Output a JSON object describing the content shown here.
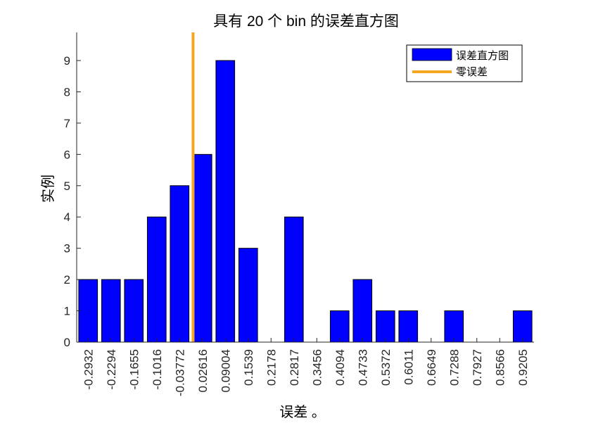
{
  "chart_data": {
    "type": "bar",
    "title": "具有 20 个 bin 的误差直方图",
    "xlabel": "误差 。",
    "ylabel": "实例",
    "categories": [
      "-0.2932",
      "-0.2294",
      "-0.1655",
      "-0.1016",
      "-0.03772",
      "0.02616",
      "0.09004",
      "0.1539",
      "0.2178",
      "0.2817",
      "0.3456",
      "0.4094",
      "0.4733",
      "0.5372",
      "0.6011",
      "0.6649",
      "0.7288",
      "0.7927",
      "0.8566",
      "0.9205"
    ],
    "series": [
      {
        "name": "误差直方图",
        "color": "#0000ff",
        "values": [
          2,
          2,
          2,
          4,
          5,
          6,
          9,
          3,
          0,
          4,
          0,
          1,
          2,
          1,
          1,
          0,
          1,
          0,
          0,
          1
        ]
      }
    ],
    "zero_error_line": {
      "name": "零误差",
      "color": "#f5a623",
      "x": 0
    },
    "ylim": [
      0,
      9.9
    ],
    "yticks": [
      0,
      1,
      2,
      3,
      4,
      5,
      6,
      7,
      8,
      9
    ],
    "grid": false,
    "legend_position": "top-right"
  }
}
